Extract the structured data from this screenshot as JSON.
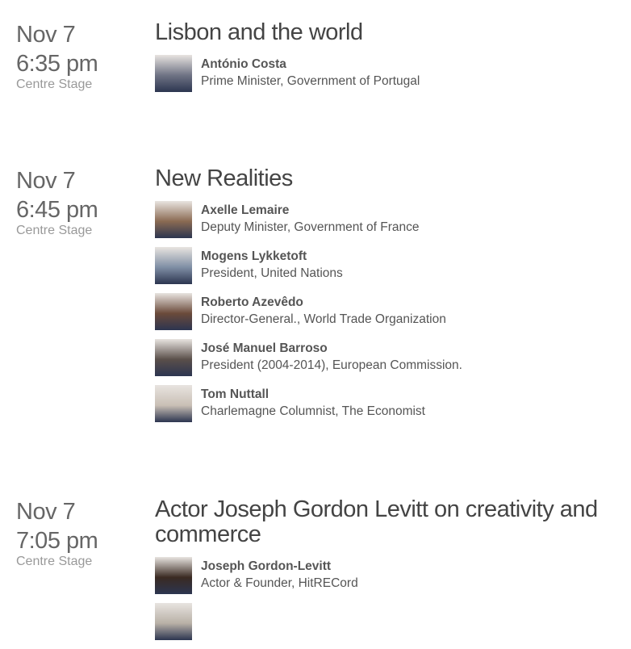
{
  "sessions": [
    {
      "date": "Nov 7",
      "time": "6:35 pm",
      "venue": "Centre Stage",
      "title": "Lisbon and the world",
      "speakers": [
        {
          "name": "António Costa",
          "role": "Prime Minister, Government of Portugal",
          "photo_color": "#6f7384"
        }
      ]
    },
    {
      "date": "Nov 7",
      "time": "6:45 pm",
      "venue": "Centre Stage",
      "title": "New Realities",
      "speakers": [
        {
          "name": "Axelle Lemaire",
          "role": "Deputy Minister, Government of France",
          "photo_color": "#8a6a52"
        },
        {
          "name": "Mogens Lykketoft",
          "role": "President, United Nations",
          "photo_color": "#7f8ea4"
        },
        {
          "name": "Roberto Azevêdo",
          "role": "Director-General., World Trade Organization",
          "photo_color": "#6b4a3a"
        },
        {
          "name": "José Manuel Barroso",
          "role": "President (2004-2014), European Commission.",
          "photo_color": "#5a4f4a"
        },
        {
          "name": "Tom Nuttall",
          "role": "Charlemagne Columnist, The Economist",
          "photo_color": "#c9bfb5"
        }
      ]
    },
    {
      "date": "Nov 7",
      "time": "7:05 pm",
      "venue": "Centre Stage",
      "title": "Actor Joseph Gordon Levitt on creativity and commerce",
      "speakers": [
        {
          "name": "Joseph Gordon-Levitt",
          "role": "Actor & Founder, HitRECord",
          "photo_color": "#3a2a22"
        },
        {
          "name": "",
          "role": "",
          "photo_color": "#b8b0a6"
        }
      ]
    }
  ]
}
